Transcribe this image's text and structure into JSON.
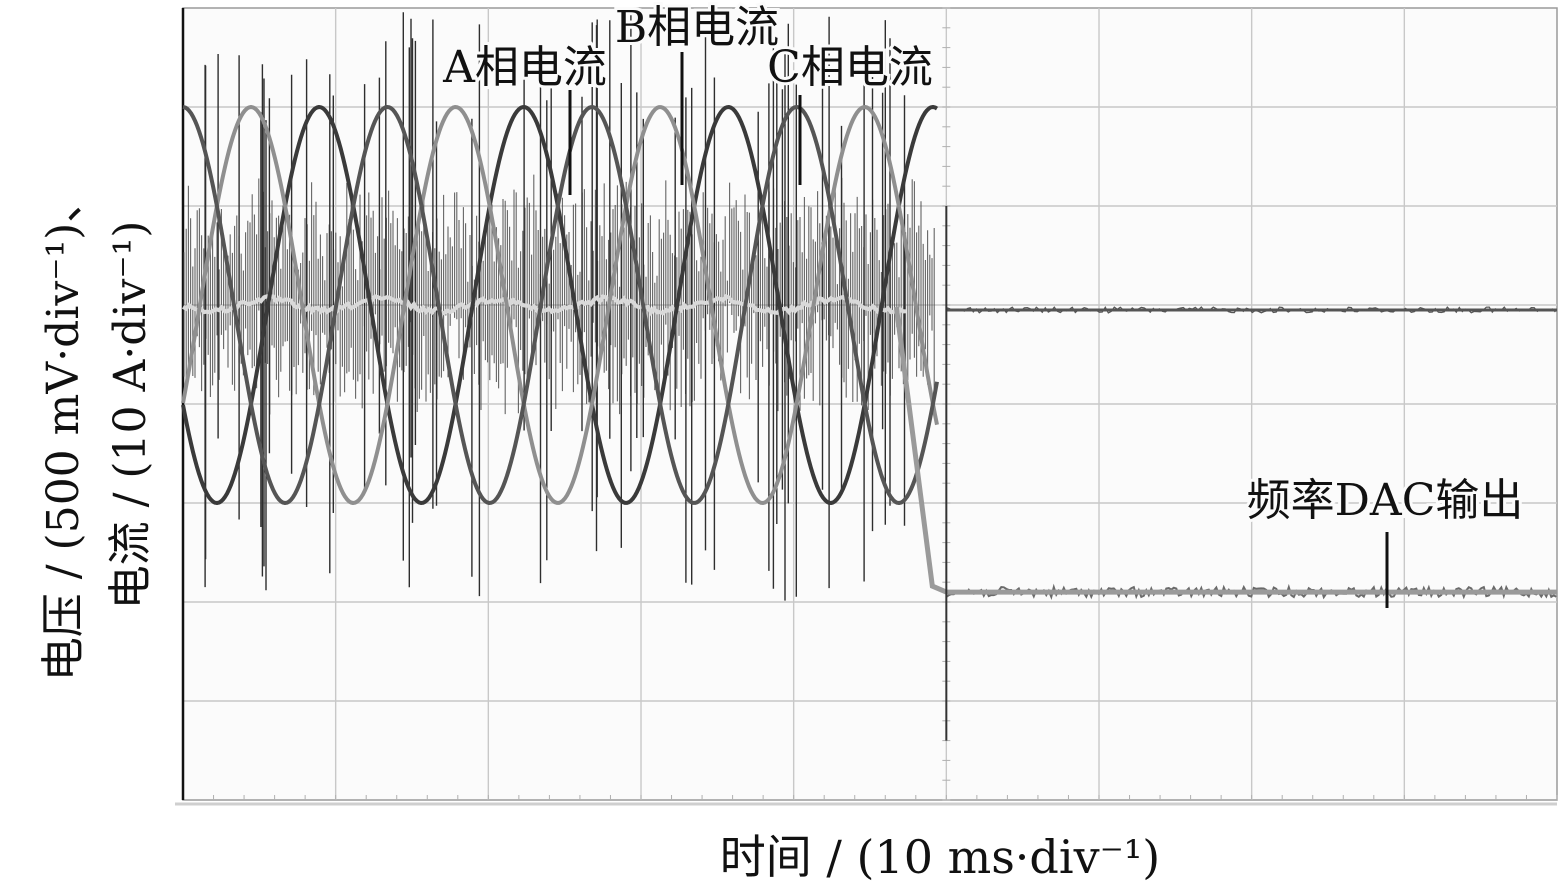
{
  "chart_data": {
    "type": "line",
    "title": "",
    "xlabel": "时间 / (10 ms·div⁻¹)",
    "ylabel_line1": "电压 / (500 mV·div⁻¹)、",
    "ylabel_line2": "电流 / (10 A·div⁻¹)",
    "x_unit": "ms",
    "x_div_ms": 10,
    "x_divisions": 9,
    "y_divisions": 8,
    "grid": true,
    "stop_time_ms": 50,
    "series": [
      {
        "name": "A相电流",
        "type": "sine",
        "period_ms": 13.4,
        "phase_deg": 0,
        "color": "#3a3a3a"
      },
      {
        "name": "B相电流",
        "type": "sine",
        "period_ms": 13.4,
        "phase_deg": 120,
        "color": "#8f8f8f"
      },
      {
        "name": "C相电流",
        "type": "sine",
        "period_ms": 13.4,
        "phase_deg": 240,
        "color": "#555555"
      },
      {
        "name": "频率DAC输出",
        "type": "step",
        "before_div": 2.9,
        "after_div": 2.1,
        "color": "#9a9a9a"
      }
    ],
    "annotations": [
      {
        "text": "A相电流",
        "target": "A相电流"
      },
      {
        "text": "B相电流",
        "target": "B相电流"
      },
      {
        "text": "C相电流",
        "target": "C相电流"
      },
      {
        "text": "频率DAC输出",
        "target": "频率DAC输出"
      }
    ]
  }
}
